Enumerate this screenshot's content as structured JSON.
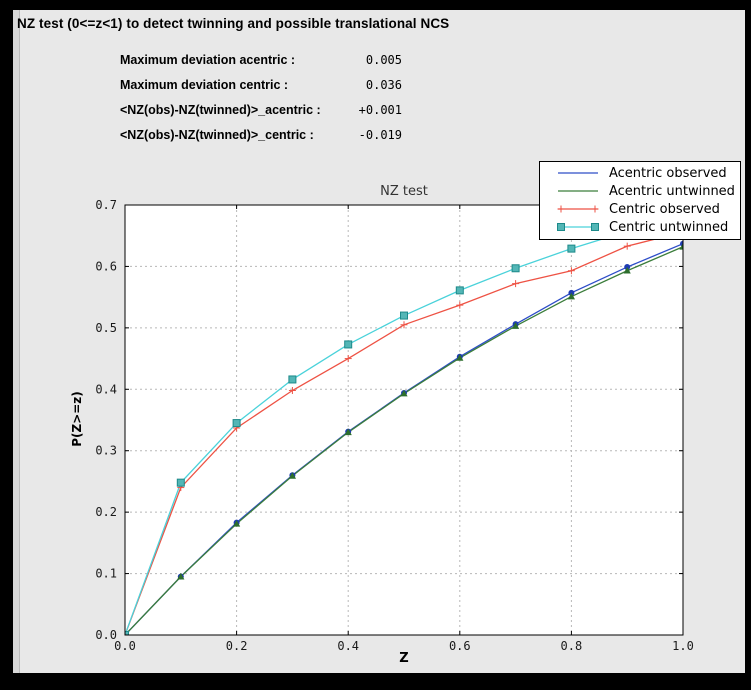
{
  "window": {
    "frame_color": "#000000",
    "panel_color": "#e8e8e8"
  },
  "header": {
    "title": "NZ test (0<=z<1) to detect twinning and possible translational NCS"
  },
  "stats": [
    {
      "label": "Maximum deviation acentric :",
      "value": "0.005"
    },
    {
      "label": "Maximum deviation centric :",
      "value": "0.036"
    },
    {
      "label": "<NZ(obs)-NZ(twinned)>_acentric :",
      "value": "+0.001"
    },
    {
      "label": "<NZ(obs)-NZ(twinned)>_centric :",
      "value": "-0.019"
    }
  ],
  "chart_data": {
    "type": "line",
    "title": "NZ test",
    "xlabel": "Z",
    "ylabel": "P(Z>=z)",
    "xlim": [
      0.0,
      1.0
    ],
    "ylim": [
      0.0,
      0.7
    ],
    "grid": true,
    "grid_style": "dashed",
    "grid_color": "#b8b8b8",
    "plot_bg": "#ffffff",
    "legend_position": "top-right",
    "xticks": [
      0.0,
      0.2,
      0.4,
      0.6,
      0.8,
      1.0
    ],
    "xtick_labels": [
      "0.0",
      "0.2",
      "0.4",
      "0.6",
      "0.8",
      "1.0"
    ],
    "yticks": [
      0.0,
      0.1,
      0.2,
      0.3,
      0.4,
      0.5,
      0.6,
      0.7
    ],
    "ytick_labels": [
      "0.0",
      "0.1",
      "0.2",
      "0.3",
      "0.4",
      "0.5",
      "0.6",
      "0.7"
    ],
    "x": [
      0.0,
      0.1,
      0.2,
      0.3,
      0.4,
      0.5,
      0.6,
      0.7,
      0.8,
      0.9,
      1.0
    ],
    "series": [
      {
        "name": "Acentric observed",
        "color": "#2d4dc8",
        "marker": "circle",
        "marker_color": "#1e3cb2",
        "values": [
          0.0,
          0.095,
          0.183,
          0.26,
          0.331,
          0.394,
          0.453,
          0.506,
          0.557,
          0.599,
          0.637
        ]
      },
      {
        "name": "Acentric untwinned",
        "color": "#3b7d3b",
        "marker": "triangle",
        "marker_color": "#2d6e2d",
        "values": [
          0.0,
          0.095,
          0.181,
          0.259,
          0.33,
          0.393,
          0.451,
          0.503,
          0.551,
          0.593,
          0.632
        ]
      },
      {
        "name": "Centric observed",
        "color": "#ee5244",
        "marker": "plus",
        "marker_color": "#ee5244",
        "values": [
          0.0,
          0.24,
          0.337,
          0.398,
          0.45,
          0.505,
          0.537,
          0.572,
          0.593,
          0.633,
          0.656
        ]
      },
      {
        "name": "Centric untwinned",
        "color": "#4ad2da",
        "marker": "square",
        "marker_color": "#53b6b6",
        "marker_edge": "#1d8a8a",
        "values": [
          0.0,
          0.248,
          0.345,
          0.416,
          0.473,
          0.52,
          0.561,
          0.597,
          0.629,
          0.657,
          0.683
        ]
      }
    ]
  }
}
